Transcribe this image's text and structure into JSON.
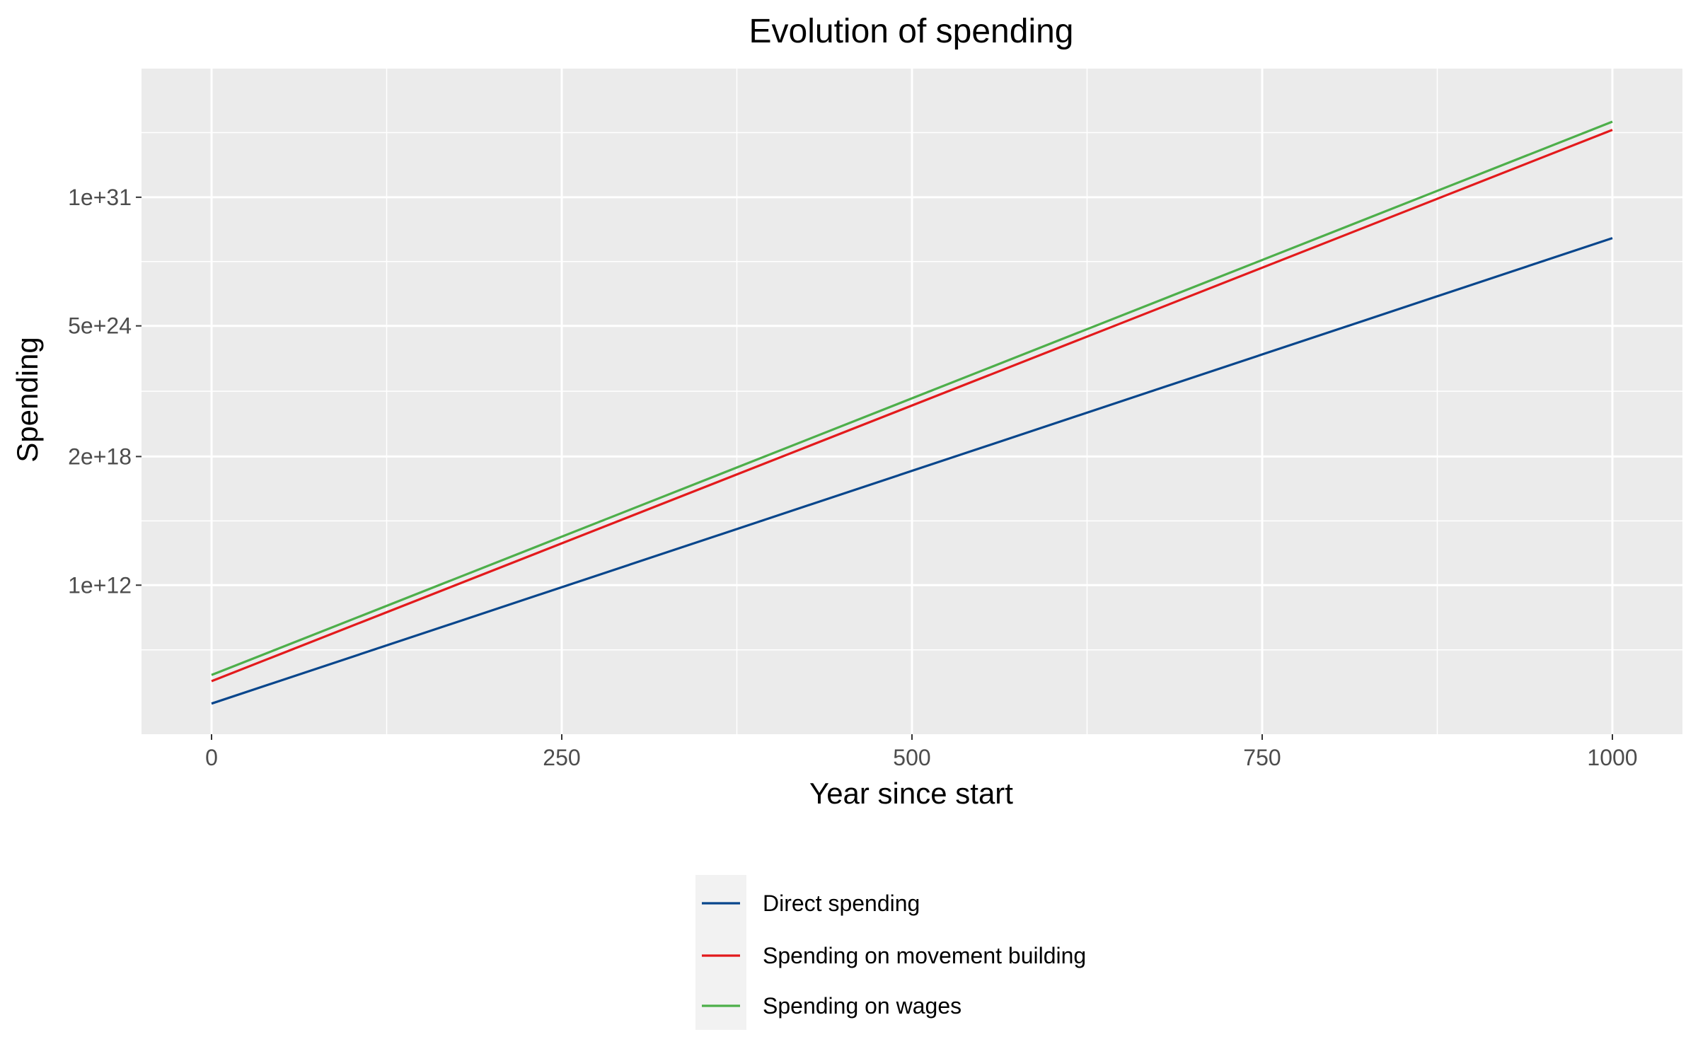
{
  "chart_data": {
    "type": "line",
    "title": "Evolution of spending",
    "xlabel": "Year since start",
    "ylabel": "Spending",
    "y_scale": "log10",
    "xlim": [
      -50,
      1050
    ],
    "ylim_log10": [
      4.7,
      37.3
    ],
    "x_ticks": [
      {
        "value": 0,
        "label": "0"
      },
      {
        "value": 250,
        "label": "250"
      },
      {
        "value": 500,
        "label": "500"
      },
      {
        "value": 750,
        "label": "750"
      },
      {
        "value": 1000,
        "label": "1000"
      }
    ],
    "y_ticks": [
      {
        "log10": 12,
        "label": "1e+12"
      },
      {
        "log10": 18.3,
        "label": "2e+18"
      },
      {
        "log10": 24.7,
        "label": "5e+24"
      },
      {
        "log10": 31,
        "label": "1e+31"
      }
    ],
    "x": [
      0,
      1000
    ],
    "series": [
      {
        "name": "Direct spending",
        "color": "#08468c",
        "log10_values": [
          6.2,
          29.0
        ]
      },
      {
        "name": "Spending on movement building",
        "color": "#e31a1c",
        "log10_values": [
          7.3,
          34.3
        ]
      },
      {
        "name": "Spending on wages",
        "color": "#4daf4a",
        "log10_values": [
          7.6,
          34.7
        ]
      }
    ],
    "grid": true,
    "legend_position": "bottom"
  }
}
